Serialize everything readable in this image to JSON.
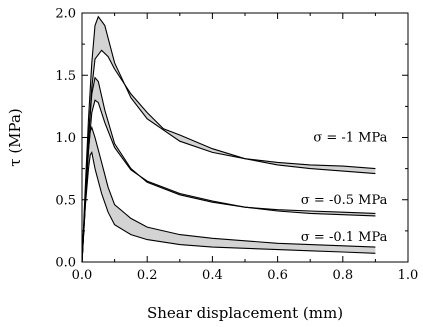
{
  "chart_data": {
    "type": "area",
    "xlabel": "Shear displacement (mm)",
    "ylabel": "τ (MPa)",
    "xlim": [
      0.0,
      1.0
    ],
    "ylim": [
      0.0,
      2.0
    ],
    "x_ticks": [
      "0.0",
      "0.2",
      "0.4",
      "0.6",
      "0.8",
      "1.0"
    ],
    "y_ticks": [
      "0.0",
      "0.5",
      "1.0",
      "1.5",
      "2.0"
    ],
    "x_tick_values": [
      0.0,
      0.2,
      0.4,
      0.6,
      0.8,
      1.0
    ],
    "y_tick_values": [
      0.0,
      0.5,
      1.0,
      1.5,
      2.0
    ],
    "grid": false,
    "band_color": "#d3d3d3",
    "line_color": "#000000",
    "series": [
      {
        "name": "σ = -1 MPa",
        "label": "σ = -1 MPa",
        "upper": [
          [
            0.0,
            0.0
          ],
          [
            0.01,
            0.6
          ],
          [
            0.02,
            1.15
          ],
          [
            0.03,
            1.6
          ],
          [
            0.04,
            1.9
          ],
          [
            0.05,
            1.97
          ],
          [
            0.07,
            1.9
          ],
          [
            0.1,
            1.6
          ],
          [
            0.15,
            1.32
          ],
          [
            0.2,
            1.15
          ],
          [
            0.3,
            0.97
          ],
          [
            0.4,
            0.88
          ],
          [
            0.5,
            0.83
          ],
          [
            0.6,
            0.8
          ],
          [
            0.7,
            0.78
          ],
          [
            0.8,
            0.77
          ],
          [
            0.9,
            0.75
          ]
        ],
        "lower": [
          [
            0.0,
            0.0
          ],
          [
            0.01,
            0.5
          ],
          [
            0.02,
            1.0
          ],
          [
            0.03,
            1.4
          ],
          [
            0.04,
            1.63
          ],
          [
            0.06,
            1.7
          ],
          [
            0.08,
            1.65
          ],
          [
            0.1,
            1.55
          ],
          [
            0.15,
            1.35
          ],
          [
            0.2,
            1.2
          ],
          [
            0.25,
            1.07
          ],
          [
            0.3,
            1.02
          ],
          [
            0.4,
            0.91
          ],
          [
            0.5,
            0.83
          ],
          [
            0.6,
            0.78
          ],
          [
            0.7,
            0.75
          ],
          [
            0.8,
            0.73
          ],
          [
            0.9,
            0.71
          ]
        ]
      },
      {
        "name": "σ = -0.5 MPa",
        "label": "σ = -0.5 MPa",
        "upper": [
          [
            0.0,
            0.0
          ],
          [
            0.01,
            0.5
          ],
          [
            0.02,
            1.0
          ],
          [
            0.03,
            1.35
          ],
          [
            0.04,
            1.48
          ],
          [
            0.05,
            1.45
          ],
          [
            0.07,
            1.22
          ],
          [
            0.1,
            0.95
          ],
          [
            0.15,
            0.75
          ],
          [
            0.2,
            0.64
          ],
          [
            0.3,
            0.54
          ],
          [
            0.4,
            0.48
          ],
          [
            0.5,
            0.44
          ],
          [
            0.6,
            0.42
          ],
          [
            0.7,
            0.41
          ],
          [
            0.8,
            0.4
          ],
          [
            0.9,
            0.39
          ]
        ],
        "lower": [
          [
            0.0,
            0.0
          ],
          [
            0.01,
            0.45
          ],
          [
            0.02,
            0.9
          ],
          [
            0.03,
            1.2
          ],
          [
            0.04,
            1.3
          ],
          [
            0.05,
            1.28
          ],
          [
            0.07,
            1.12
          ],
          [
            0.1,
            0.92
          ],
          [
            0.15,
            0.74
          ],
          [
            0.2,
            0.65
          ],
          [
            0.3,
            0.55
          ],
          [
            0.4,
            0.49
          ],
          [
            0.5,
            0.44
          ],
          [
            0.6,
            0.41
          ],
          [
            0.7,
            0.39
          ],
          [
            0.8,
            0.38
          ],
          [
            0.9,
            0.37
          ]
        ]
      },
      {
        "name": "σ = -0.1 MPa",
        "label": "σ = -0.1 MPa",
        "upper": [
          [
            0.0,
            0.0
          ],
          [
            0.01,
            0.5
          ],
          [
            0.02,
            0.9
          ],
          [
            0.025,
            1.05
          ],
          [
            0.03,
            1.08
          ],
          [
            0.04,
            1.0
          ],
          [
            0.06,
            0.8
          ],
          [
            0.08,
            0.6
          ],
          [
            0.1,
            0.46
          ],
          [
            0.15,
            0.35
          ],
          [
            0.2,
            0.28
          ],
          [
            0.3,
            0.22
          ],
          [
            0.4,
            0.19
          ],
          [
            0.5,
            0.17
          ],
          [
            0.6,
            0.15
          ],
          [
            0.7,
            0.14
          ],
          [
            0.8,
            0.13
          ],
          [
            0.9,
            0.12
          ]
        ],
        "lower": [
          [
            0.0,
            0.0
          ],
          [
            0.01,
            0.45
          ],
          [
            0.02,
            0.75
          ],
          [
            0.025,
            0.86
          ],
          [
            0.03,
            0.88
          ],
          [
            0.04,
            0.75
          ],
          [
            0.06,
            0.55
          ],
          [
            0.08,
            0.4
          ],
          [
            0.1,
            0.3
          ],
          [
            0.15,
            0.22
          ],
          [
            0.2,
            0.18
          ],
          [
            0.3,
            0.14
          ],
          [
            0.4,
            0.12
          ],
          [
            0.5,
            0.11
          ],
          [
            0.6,
            0.1
          ],
          [
            0.7,
            0.09
          ],
          [
            0.8,
            0.08
          ],
          [
            0.9,
            0.07
          ]
        ]
      }
    ]
  }
}
